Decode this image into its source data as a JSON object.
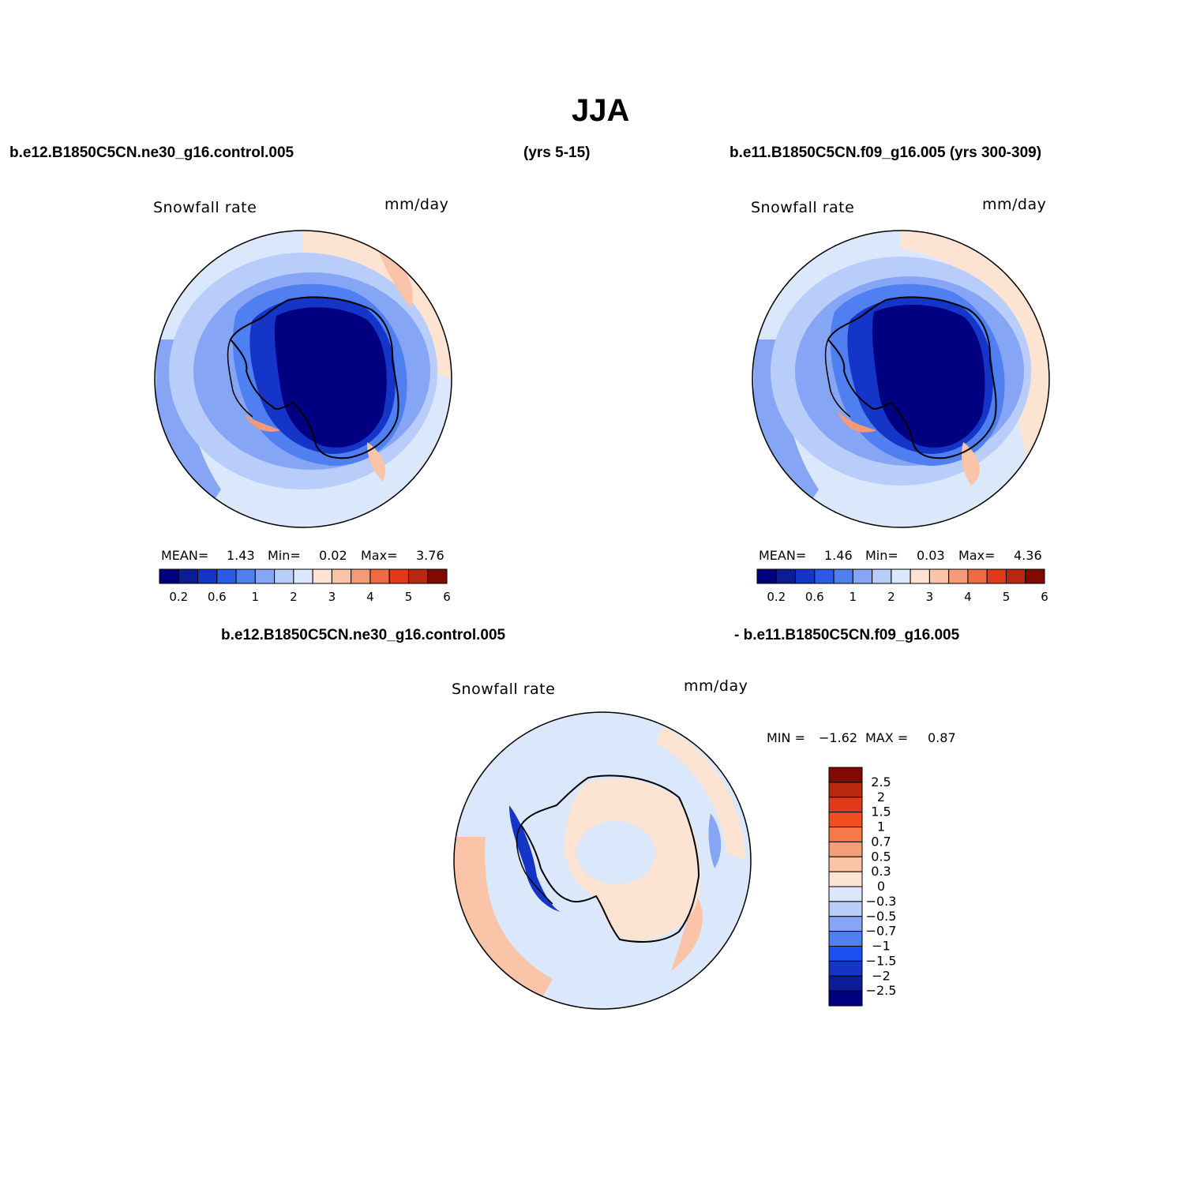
{
  "title": "JJA",
  "header": {
    "case1": "b.e12.B1850C5CN.ne30_g16.control.005",
    "case1_years": "(yrs 5-15)",
    "case2": "b.e11.B1850C5CN.f09_g16.005 (yrs 300-309)"
  },
  "panels": [
    {
      "variable": "Snowfall rate",
      "units": "mm/day",
      "stats": {
        "mean_label": "MEAN=",
        "mean": "1.43",
        "min_label": "Min=",
        "min": "0.02",
        "max_label": "Max=",
        "max": "3.76"
      }
    },
    {
      "variable": "Snowfall rate",
      "units": "mm/day",
      "stats": {
        "mean_label": "MEAN=",
        "mean": "1.46",
        "min_label": "Min=",
        "min": "0.03",
        "max_label": "Max=",
        "max": "4.36"
      }
    }
  ],
  "diff": {
    "label_left": "b.e12.B1850C5CN.ne30_g16.control.005",
    "label_right": "- b.e11.B1850C5CN.f09_g16.005",
    "variable": "Snowfall rate",
    "units": "mm/day",
    "min_label": "MIN =",
    "min": "−1.62",
    "max_label": "MAX =",
    "max": "0.87"
  },
  "colorbar_abs": {
    "colors": [
      "#000080",
      "#0a1c96",
      "#1435c8",
      "#2a5ae6",
      "#4f7ff0",
      "#87a5f5",
      "#b8cdfa",
      "#dbe8fc",
      "#fde3d2",
      "#f9c4a8",
      "#f49a78",
      "#f06a44",
      "#e03a18",
      "#b82810",
      "#800a00"
    ],
    "tick_labels": [
      "0.2",
      "0.6",
      "1",
      "2",
      "3",
      "4",
      "5",
      "6"
    ]
  },
  "colorbar_diff": {
    "colors": [
      "#800a00",
      "#b82810",
      "#e03a18",
      "#f0501e",
      "#f57a48",
      "#f79e78",
      "#f9c4a8",
      "#fde3d2",
      "#dbe8fc",
      "#b8cdfa",
      "#87a5f5",
      "#4f7ff0",
      "#1a4ff0",
      "#1435c8",
      "#0a1c96",
      "#000080"
    ],
    "tick_labels": [
      "2.5",
      "2",
      "1.5",
      "1",
      "0.7",
      "0.5",
      "0.3",
      "0",
      "−0.3",
      "−0.5",
      "−0.7",
      "−1",
      "−1.5",
      "−2",
      "−2.5"
    ]
  }
}
